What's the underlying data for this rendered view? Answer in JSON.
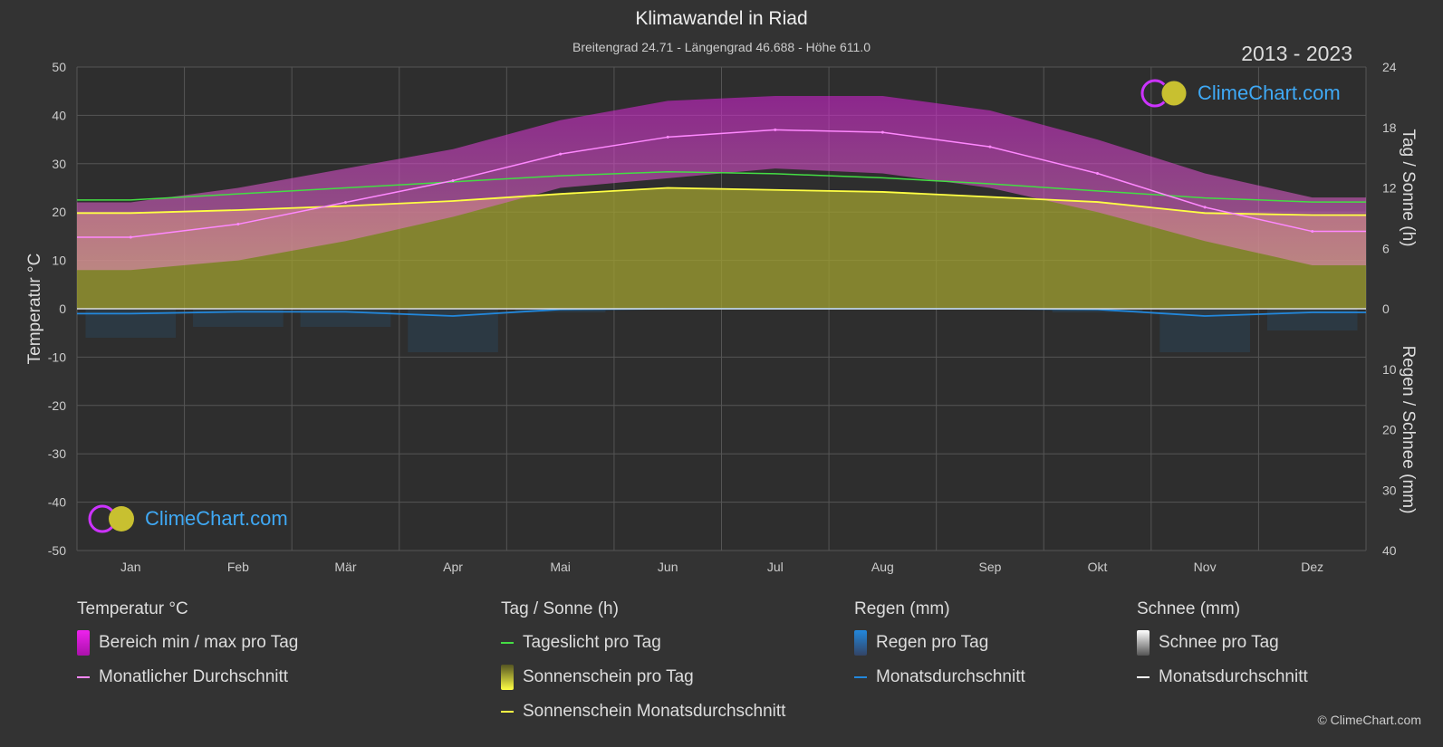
{
  "title": "Klimawandel in Riad",
  "subtitle": "Breitengrad 24.71 - Längengrad 46.688 - Höhe 611.0",
  "years": "2013 - 2023",
  "brand": "ClimeChart.com",
  "copyright": "© ClimeChart.com",
  "legend": {
    "temp": {
      "title": "Temperatur °C",
      "range": "Bereich min / max pro Tag",
      "avg": "Monatlicher Durchschnitt"
    },
    "sun": {
      "title": "Tag / Sonne (h)",
      "daylight": "Tageslicht pro Tag",
      "sunshine": "Sonnenschein pro Tag",
      "sunavg": "Sonnenschein Monatsdurchschnitt"
    },
    "rain": {
      "title": "Regen (mm)",
      "perday": "Regen pro Tag",
      "avg": "Monatsdurchschnitt"
    },
    "snow": {
      "title": "Schnee (mm)",
      "perday": "Schnee pro Tag",
      "avg": "Monatsdurchschnitt"
    }
  },
  "colors": {
    "temp_range": "#cc22cc",
    "temp_avg": "#ff88ff",
    "daylight": "#44dd44",
    "sunshine": "#a0a030",
    "sun_avg": "#ffff44",
    "rain": "#2288dd",
    "snow": "#ffffff"
  },
  "chart_data": {
    "type": "line",
    "categories": [
      "Jan",
      "Feb",
      "Mär",
      "Apr",
      "Mai",
      "Jun",
      "Jul",
      "Aug",
      "Sep",
      "Okt",
      "Nov",
      "Dez"
    ],
    "y_left": {
      "label": "Temperatur °C",
      "range": [
        -50,
        50
      ],
      "ticks": [
        50,
        40,
        30,
        20,
        10,
        0,
        -10,
        -20,
        -30,
        -40,
        -50
      ]
    },
    "y_right_top": {
      "label": "Tag / Sonne (h)",
      "range": [
        0,
        24
      ],
      "ticks": [
        24,
        18,
        12,
        6,
        0
      ]
    },
    "y_right_bottom": {
      "label": "Regen / Schnee (mm)",
      "range": [
        0,
        40
      ],
      "ticks": [
        0,
        10,
        20,
        30,
        40
      ]
    },
    "grid": true,
    "series": [
      {
        "name": "Monatlicher Durchschnitt",
        "unit": "°C",
        "values": [
          14.8,
          17.5,
          22,
          26.5,
          32,
          35.5,
          37,
          36.5,
          33.5,
          28,
          21,
          16
        ]
      },
      {
        "name": "Bereich min / max pro Tag",
        "unit": "°C",
        "min": [
          8,
          10,
          14,
          19,
          25,
          27,
          29,
          28,
          25,
          20,
          14,
          9
        ],
        "max": [
          22,
          25,
          29,
          33,
          39,
          43,
          44,
          44,
          41,
          35,
          28,
          23
        ]
      },
      {
        "name": "Tageslicht pro Tag",
        "unit": "h",
        "values": [
          10.8,
          11.4,
          12,
          12.6,
          13.2,
          13.6,
          13.4,
          13,
          12.4,
          11.7,
          11,
          10.6
        ]
      },
      {
        "name": "Sonnenschein Monatsdurchschnitt",
        "unit": "h",
        "values": [
          9.5,
          9.8,
          10.2,
          10.7,
          11.4,
          12,
          11.8,
          11.6,
          11.1,
          10.6,
          9.5,
          9.3
        ]
      },
      {
        "name": "Monatsdurchschnitt",
        "unit": "mm",
        "values": [
          0.8,
          0.5,
          0.5,
          1.2,
          0.1,
          0,
          0,
          0,
          0,
          0.1,
          1.2,
          0.6
        ]
      }
    ]
  }
}
